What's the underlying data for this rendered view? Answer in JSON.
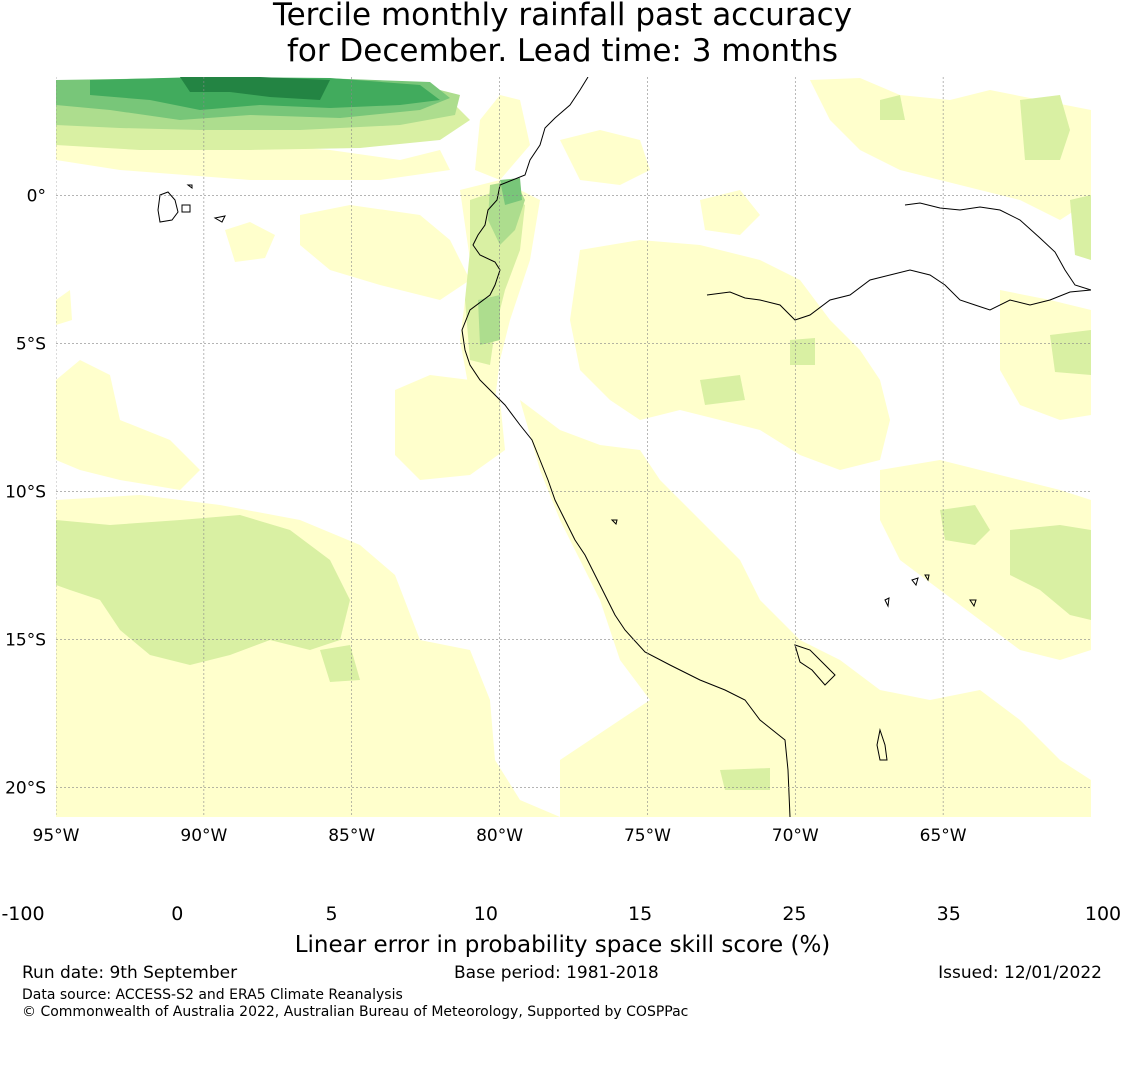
{
  "title": {
    "line1": "Tercile monthly rainfall past accuracy",
    "line2": "for December. Lead time: 3 months"
  },
  "map": {
    "lon_range": [
      -95,
      -60
    ],
    "lat_range": [
      -21,
      4
    ],
    "x_ticks": [
      {
        "lon": -95,
        "label": "95°W"
      },
      {
        "lon": -90,
        "label": "90°W"
      },
      {
        "lon": -85,
        "label": "85°W"
      },
      {
        "lon": -80,
        "label": "80°W"
      },
      {
        "lon": -75,
        "label": "75°W"
      },
      {
        "lon": -70,
        "label": "70°W"
      },
      {
        "lon": -65,
        "label": "65°W"
      }
    ],
    "y_ticks": [
      {
        "lat": 0,
        "label": "0°"
      },
      {
        "lat": -5,
        "label": "5°S"
      },
      {
        "lat": -10,
        "label": "10°S"
      },
      {
        "lat": -15,
        "label": "15°S"
      },
      {
        "lat": -20,
        "label": "20°S"
      }
    ],
    "gridlines": true
  },
  "colorbar": {
    "boundaries": [
      {
        "value": -100,
        "label": "-100"
      },
      {
        "value": 0,
        "label": "0"
      },
      {
        "value": 5,
        "label": "5"
      },
      {
        "value": 10,
        "label": "10"
      },
      {
        "value": 15,
        "label": "15"
      },
      {
        "value": 25,
        "label": "25"
      },
      {
        "value": 35,
        "label": "35"
      },
      {
        "value": 100,
        "label": "100"
      }
    ],
    "colors": [
      "#ffffff",
      "#ffffcc",
      "#d9f0a3",
      "#addd8e",
      "#78c679",
      "#41ab5d",
      "#238443"
    ],
    "title": "Linear error in probability space skill score (%)"
  },
  "footer": {
    "run_date": "Run date: 9th September",
    "base_period": "Base period: 1981-2018",
    "issued": "Issued: 12/01/2022",
    "data_source": "Data source: ACCESS-S2 and ERA5 Climate Reanalysis",
    "copyright": "© Commonwealth of Australia 2022, Australian Bureau of Meteorology, Supported by COSPPac"
  }
}
